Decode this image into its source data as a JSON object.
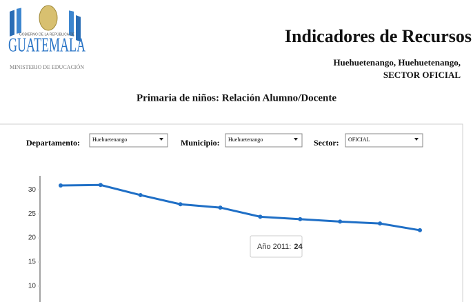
{
  "header": {
    "logo": {
      "top": "GOBIERNO DE LA REPÚBLICA DE",
      "name": "GUATEMALA",
      "bottom": "MINISTERIO DE EDUCACIÓN"
    },
    "title": "Indicadores de Recursos",
    "subtitle": "Huehuetenango, Huehuetenango, SECTOR OFICIAL"
  },
  "filters": [
    {
      "label": "Departamento:",
      "value": "Huehuetenango"
    },
    {
      "label": "Municipio:",
      "value": "Huehuetenango"
    },
    {
      "label": "Sector:",
      "value": "OFICIAL"
    }
  ],
  "chart_data": {
    "type": "line",
    "title": "Primaria de niños: Relación Alumno/Docente",
    "categories": [
      null,
      null,
      null,
      null,
      null,
      null,
      null,
      null,
      null,
      null
    ],
    "series": [
      {
        "color": "#1f6fc6",
        "values": [
          30.9,
          31.0,
          28.9,
          27.0,
          26.3,
          24.4,
          23.9,
          23.4,
          23.0,
          21.6
        ]
      }
    ],
    "ylim": [
      6.7,
      32.9
    ],
    "yticks": [
      10,
      15,
      20,
      25,
      30
    ],
    "grid": false,
    "tooltip": {
      "label": "Año 2011:",
      "value": 24
    }
  }
}
